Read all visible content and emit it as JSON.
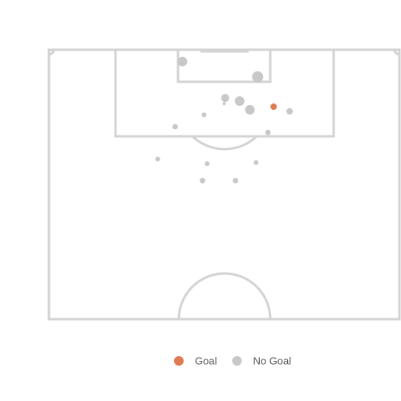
{
  "chart_data": {
    "type": "scatter",
    "xlim": [
      0,
      68
    ],
    "ylim": [
      0,
      52.5
    ],
    "series": [
      {
        "name": "Goal",
        "color": "#e07b54",
        "x": [
          43.6
        ],
        "y": [
          11.1
        ],
        "sizes": [
          0.04
        ]
      },
      {
        "name": "No Goal",
        "color": "#c8c8c8",
        "x": [
          25.9,
          40.5,
          34.2,
          34.0,
          37.0,
          39.0,
          46.7,
          30.1,
          24.5,
          42.5,
          21.1,
          30.7,
          40.2,
          29.8,
          36.2
        ],
        "y": [
          2.3,
          5.3,
          9.4,
          10.5,
          10.0,
          11.7,
          12.0,
          12.7,
          15.0,
          16.1,
          21.3,
          22.2,
          22.0,
          25.5,
          25.5
        ],
        "sizes": [
          0.16,
          0.25,
          0.09,
          0.0,
          0.16,
          0.16,
          0.04,
          0.01,
          0.02,
          0.02,
          0.01,
          0.01,
          0.01,
          0.02,
          0.02
        ]
      }
    ],
    "legend": "bottom"
  }
}
